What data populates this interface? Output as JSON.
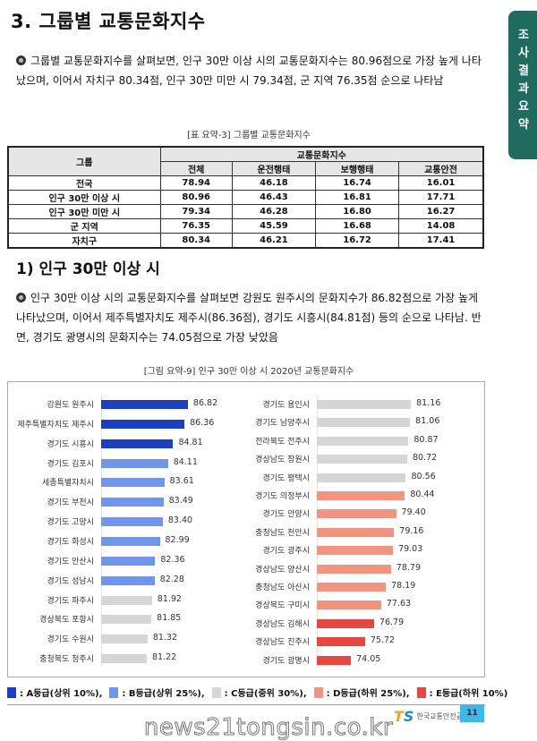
{
  "title": "3. 그룹별 교통문화지수",
  "side_tab": [
    "조",
    "사",
    "결",
    "과",
    "요",
    "약"
  ],
  "para1": "그룹별 교통문화지수를 살펴보면, 인구 30만 이상 시의 교통문화지수는 80.96점으로 가장 높게 나타났으며, 이어서 자치구 80.34점, 인구 30만 미만 시 79.34점, 군 지역 76.35점 순으로 나타남",
  "table": {
    "caption": "[표 요약-3] 그룹별 교통문화지수",
    "group_header": "그룹",
    "index_header": "교통문화지수",
    "columns": [
      "전체",
      "운전행태",
      "보행행태",
      "교통안전"
    ],
    "rows": [
      {
        "group": "전국",
        "values": [
          "78.94",
          "46.18",
          "16.74",
          "16.01"
        ]
      },
      {
        "group": "인구 30만 이상 시",
        "values": [
          "80.96",
          "46.43",
          "16.81",
          "17.71"
        ]
      },
      {
        "group": "인구 30만 미만 시",
        "values": [
          "79.34",
          "46.28",
          "16.80",
          "16.27"
        ]
      },
      {
        "group": "군 지역",
        "values": [
          "76.35",
          "45.59",
          "16.68",
          "14.08"
        ]
      },
      {
        "group": "자치구",
        "values": [
          "80.34",
          "46.21",
          "16.72",
          "17.41"
        ]
      }
    ]
  },
  "section1": "1) 인구 30만 이상 시",
  "para2": "인구 30만 이상 시의 교통문화지수를 살펴보면 강원도 원주시의 문화지수가 86.82점으로 가장 높게 나타났으며, 이어서 제주특별자치도 제주시(86.36점), 경기도 시흥시(84.81점) 등의 순으로 나타남. 반면, 경기도 광명시의 문화지수는 74.05점으로 가장 낮았음",
  "chart_data": {
    "type": "bar",
    "orientation": "horizontal",
    "title": "[그림 요약-9] 인구 30만 이상 시 2020년 교통문화지수",
    "grade_colors": {
      "A": "#1a3fc4",
      "B": "#6f95ec",
      "C": "#d6d6d6",
      "D": "#f4937e",
      "E": "#e8463e"
    },
    "panels": [
      {
        "xlim": [
          75,
          88
        ],
        "items": [
          {
            "label": "강원도 원주시",
            "value": 86.82,
            "grade": "A"
          },
          {
            "label": "제주특별자치도 제주시",
            "value": 86.36,
            "grade": "A"
          },
          {
            "label": "경기도 시흥시",
            "value": 84.81,
            "grade": "A"
          },
          {
            "label": "경기도 김포시",
            "value": 84.11,
            "grade": "B"
          },
          {
            "label": "세종특별자치시",
            "value": 83.61,
            "grade": "B"
          },
          {
            "label": "경기도 부천시",
            "value": 83.49,
            "grade": "B"
          },
          {
            "label": "경기도 고양시",
            "value": 83.4,
            "grade": "B"
          },
          {
            "label": "경기도 화성시",
            "value": 82.99,
            "grade": "B"
          },
          {
            "label": "경기도 안산시",
            "value": 82.36,
            "grade": "B"
          },
          {
            "label": "경기도 성남시",
            "value": 82.28,
            "grade": "B"
          },
          {
            "label": "경기도 파주시",
            "value": 81.92,
            "grade": "C"
          },
          {
            "label": "경상북도 포항시",
            "value": 81.85,
            "grade": "C"
          },
          {
            "label": "경기도 수원시",
            "value": 81.32,
            "grade": "C"
          },
          {
            "label": "충청북도 청주시",
            "value": 81.22,
            "grade": "C"
          }
        ]
      },
      {
        "xlim": [
          70,
          83
        ],
        "items": [
          {
            "label": "경기도 용인시",
            "value": 81.16,
            "grade": "C"
          },
          {
            "label": "경기도 남양주시",
            "value": 81.06,
            "grade": "C"
          },
          {
            "label": "전라북도 전주시",
            "value": 80.87,
            "grade": "C"
          },
          {
            "label": "경상남도 창원시",
            "value": 80.72,
            "grade": "C"
          },
          {
            "label": "경기도 평택시",
            "value": 80.56,
            "grade": "C"
          },
          {
            "label": "경기도 의정부시",
            "value": 80.44,
            "grade": "D"
          },
          {
            "label": "경기도 안양시",
            "value": 79.4,
            "grade": "D"
          },
          {
            "label": "충청남도 천안시",
            "value": 79.16,
            "grade": "D"
          },
          {
            "label": "경기도 광주시",
            "value": 79.03,
            "grade": "D"
          },
          {
            "label": "경상남도 양산시",
            "value": 78.79,
            "grade": "D"
          },
          {
            "label": "충청남도 아산시",
            "value": 78.19,
            "grade": "D"
          },
          {
            "label": "경상북도 구미시",
            "value": 77.63,
            "grade": "D"
          },
          {
            "label": "경상남도 김해시",
            "value": 76.79,
            "grade": "E"
          },
          {
            "label": "경상남도 진주시",
            "value": 75.72,
            "grade": "E"
          },
          {
            "label": "경기도 광명시",
            "value": 74.05,
            "grade": "E"
          }
        ]
      }
    ],
    "legend": [
      {
        "grade": "A",
        "label": ": A등급(상위 10%),"
      },
      {
        "grade": "B",
        "label": ": B등급(상위 25%),"
      },
      {
        "grade": "C",
        "label": ": C등급(중위 30%),"
      },
      {
        "grade": "D",
        "label": ": D등급(하위 25%),"
      },
      {
        "grade": "E",
        "label": ": E등급(하위 10%)"
      }
    ]
  },
  "footer": {
    "logo_text": "TS",
    "org": "한국교통안전공단",
    "page": "11"
  },
  "watermark": "news21tongsin.co.kr"
}
